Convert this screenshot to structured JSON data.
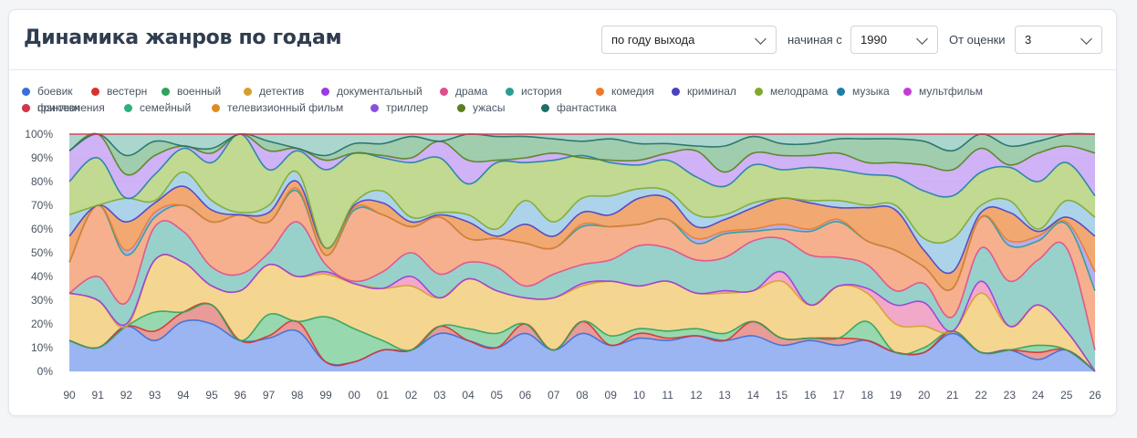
{
  "title": "Динамика жанров по годам",
  "controls": {
    "mode": "по году выхода",
    "from_label": "начиная с",
    "from_value": "1990",
    "rating_label": "От оценки",
    "rating_value": "3"
  },
  "chart_data": {
    "type": "area",
    "stacked": "percent",
    "categories": [
      "90",
      "91",
      "92",
      "93",
      "94",
      "95",
      "96",
      "97",
      "98",
      "99",
      "00",
      "01",
      "02",
      "03",
      "04",
      "05",
      "06",
      "07",
      "08",
      "09",
      "10",
      "11",
      "12",
      "13",
      "14",
      "15",
      "16",
      "17",
      "18",
      "19",
      "20",
      "21",
      "22",
      "23",
      "24",
      "25",
      "26"
    ],
    "yticks": [
      "0%",
      "10%",
      "20%",
      "30%",
      "40%",
      "50%",
      "60%",
      "70%",
      "80%",
      "90%",
      "100%"
    ],
    "ylim": [
      0,
      100
    ],
    "legend_position": "top",
    "series": [
      {
        "name": "боевик",
        "color": "#3a6fd8",
        "values": [
          13,
          10,
          19,
          13,
          21,
          20,
          13,
          14,
          17,
          4,
          4,
          8,
          9,
          16,
          13,
          10,
          16,
          9,
          16,
          11,
          14,
          12,
          15,
          13,
          15,
          11,
          13,
          11,
          13,
          8,
          8,
          16,
          8,
          8,
          5,
          9,
          0
        ]
      },
      {
        "name": "вестерн",
        "color": "#d6332f",
        "values": [
          0,
          0,
          0,
          0,
          0,
          0,
          0,
          0,
          0,
          0,
          0,
          1,
          0,
          0,
          0,
          0,
          0,
          0,
          0,
          0,
          0,
          0,
          0,
          0,
          0,
          0,
          0,
          0,
          0,
          0,
          0,
          0,
          0,
          1,
          0,
          0,
          0
        ]
      },
      {
        "name": "военный",
        "color": "#2ea35a",
        "values": [
          0,
          0,
          0,
          4,
          4,
          8,
          0,
          1,
          4,
          0,
          0,
          0,
          0,
          3,
          0,
          0,
          4,
          0,
          5,
          0,
          2,
          1,
          0,
          0,
          6,
          3,
          1,
          3,
          0,
          0,
          0,
          1,
          0,
          0,
          3,
          0,
          0
        ]
      },
      {
        "name": "детектив",
        "color": "#d69e2e",
        "values": [
          0,
          0,
          0,
          8,
          0,
          0,
          0,
          9,
          0,
          19,
          14,
          4,
          0,
          0,
          5,
          6,
          0,
          0,
          0,
          4,
          2,
          3,
          3,
          3,
          0,
          0,
          0,
          0,
          8,
          0,
          2,
          0,
          0,
          0,
          3,
          0,
          0
        ]
      },
      {
        "name": "документальный",
        "color": "#9b3ae0",
        "values": [
          0,
          0,
          0,
          0,
          0,
          0,
          0,
          0,
          0,
          0,
          0,
          0,
          0,
          0,
          0,
          0,
          0,
          0,
          0,
          0,
          0,
          0,
          0,
          0,
          0,
          0,
          0,
          0,
          0,
          0,
          0,
          0,
          0,
          0,
          0,
          0,
          0
        ]
      },
      {
        "name": "драма",
        "color": "#e04f8b",
        "values": [
          20,
          20,
          0,
          22,
          21,
          8,
          21,
          21,
          19,
          18,
          19,
          22,
          27,
          12,
          21,
          18,
          11,
          22,
          15,
          23,
          18,
          21,
          15,
          17,
          13,
          24,
          14,
          22,
          12,
          12,
          9,
          0,
          25,
          10,
          17,
          8,
          0
        ]
      },
      {
        "name": "история",
        "color": "#2a9d8f",
        "values": [
          0,
          0,
          1,
          0,
          0,
          0,
          0,
          0,
          0,
          0,
          0,
          0,
          4,
          0,
          0,
          0,
          0,
          0,
          1,
          0,
          0,
          0,
          0,
          1,
          0,
          4,
          0,
          0,
          2,
          8,
          10,
          0,
          5,
          0,
          0,
          0,
          0
        ]
      },
      {
        "name": "комедия",
        "color": "#ec7a2a",
        "values": [
          0,
          10,
          9,
          14,
          13,
          8,
          7,
          5,
          23,
          3,
          1,
          7,
          10,
          10,
          7,
          10,
          5,
          10,
          8,
          9,
          17,
          14,
          14,
          14,
          21,
          14,
          21,
          12,
          10,
          6,
          8,
          6,
          14,
          19,
          19,
          35,
          9
        ]
      },
      {
        "name": "криминал",
        "color": "#4b3fc4",
        "values": [
          0,
          0,
          0,
          0,
          0,
          0,
          0,
          0,
          0,
          0,
          0,
          0,
          0,
          0,
          0,
          0,
          0,
          0,
          0,
          0,
          0,
          0,
          0,
          0,
          0,
          0,
          0,
          0,
          0,
          0,
          0,
          0,
          0,
          0,
          0,
          0,
          0
        ]
      },
      {
        "name": "мелодрама",
        "color": "#7fa82e",
        "values": [
          0,
          0,
          0,
          0,
          0,
          0,
          0,
          0,
          0,
          0,
          0,
          0,
          0,
          0,
          0,
          0,
          0,
          0,
          0,
          0,
          0,
          0,
          0,
          0,
          0,
          0,
          0,
          0,
          0,
          0,
          0,
          0,
          0,
          0,
          0,
          0,
          0
        ]
      },
      {
        "name": "музыка",
        "color": "#1f7fa8",
        "values": [
          0,
          0,
          0,
          0,
          0,
          0,
          0,
          0,
          0,
          0,
          0,
          0,
          0,
          0,
          0,
          0,
          0,
          0,
          0,
          0,
          0,
          0,
          0,
          0,
          0,
          0,
          0,
          0,
          0,
          0,
          0,
          0,
          0,
          0,
          0,
          0,
          0
        ]
      },
      {
        "name": "мультфильм",
        "color": "#c63ad6",
        "values": [
          0,
          0,
          0,
          0,
          0,
          0,
          0,
          0,
          0,
          0,
          0,
          0,
          0,
          0,
          0,
          0,
          0,
          0,
          0,
          0,
          0,
          0,
          0,
          0,
          0,
          0,
          0,
          0,
          0,
          0,
          0,
          0,
          0,
          0,
          0,
          0,
          0
        ]
      },
      {
        "name": "приключения",
        "color": "#2b8fd6",
        "values": [
          0,
          0,
          0,
          0,
          0,
          0,
          0,
          0,
          0,
          0,
          0,
          0,
          0,
          0,
          0,
          0,
          0,
          0,
          0,
          0,
          0,
          0,
          0,
          0,
          0,
          0,
          0,
          0,
          0,
          0,
          0,
          0,
          0,
          0,
          0,
          0,
          0
        ]
      },
      {
        "name": "семейный",
        "color": "#2fae7e",
        "values": [
          0,
          0,
          0,
          0,
          0,
          0,
          0,
          0,
          0,
          0,
          0,
          0,
          0,
          0,
          0,
          0,
          0,
          0,
          0,
          0,
          0,
          0,
          0,
          0,
          0,
          0,
          0,
          0,
          0,
          0,
          0,
          0,
          0,
          0,
          0,
          0,
          0
        ]
      },
      {
        "name": "телевизионный фильм",
        "color": "#e2891f",
        "values": [
          0,
          0,
          0,
          0,
          0,
          0,
          0,
          0,
          0,
          0,
          0,
          0,
          0,
          0,
          0,
          0,
          0,
          0,
          0,
          0,
          0,
          0,
          0,
          0,
          0,
          0,
          0,
          0,
          0,
          0,
          0,
          0,
          0,
          0,
          0,
          0,
          0
        ]
      },
      {
        "name": "триллер",
        "color": "#8a4fe0",
        "values": [
          0,
          0,
          0,
          0,
          0,
          0,
          0,
          0,
          0,
          0,
          0,
          0,
          0,
          0,
          0,
          0,
          0,
          0,
          0,
          0,
          0,
          0,
          0,
          0,
          0,
          0,
          0,
          0,
          0,
          0,
          0,
          0,
          0,
          0,
          0,
          0,
          0
        ]
      },
      {
        "name": "ужасы",
        "color": "#5a7f1f",
        "values": [
          0,
          0,
          0,
          0,
          0,
          0,
          0,
          0,
          0,
          0,
          0,
          0,
          0,
          0,
          0,
          0,
          0,
          0,
          0,
          0,
          0,
          0,
          0,
          0,
          0,
          0,
          0,
          0,
          0,
          0,
          0,
          0,
          0,
          0,
          0,
          0,
          0
        ]
      },
      {
        "name": "фантастика",
        "color": "#1f6f66",
        "values": [
          0,
          0,
          0,
          0,
          0,
          0,
          0,
          0,
          0,
          0,
          0,
          0,
          0,
          0,
          0,
          0,
          0,
          0,
          0,
          0,
          0,
          0,
          0,
          0,
          0,
          0,
          0,
          0,
          0,
          0,
          0,
          0,
          0,
          0,
          0,
          0,
          0
        ]
      },
      {
        "name": "фэнтези",
        "color": "#d8334a",
        "values": [
          0,
          0,
          0,
          0,
          0,
          0,
          0,
          0,
          0,
          0,
          0,
          0,
          0,
          0,
          0,
          0,
          0,
          0,
          0,
          0,
          0,
          0,
          0,
          0,
          0,
          0,
          0,
          0,
          0,
          0,
          0,
          0,
          0,
          0,
          0,
          0,
          0
        ]
      }
    ],
    "cumulative_boundaries": [
      [
        13,
        10,
        19,
        13,
        21,
        20,
        13,
        14,
        17,
        4,
        4,
        9,
        9,
        16,
        13,
        10,
        16,
        9,
        16,
        11,
        14,
        13,
        15,
        13,
        15,
        11,
        13,
        11,
        13,
        8,
        8,
        16,
        8,
        9,
        5,
        9,
        0
      ],
      [
        13,
        10,
        19,
        17,
        25,
        28,
        13,
        15,
        21,
        4,
        4,
        9,
        9,
        19,
        13,
        10,
        20,
        9,
        21,
        11,
        16,
        14,
        15,
        13,
        21,
        14,
        14,
        14,
        13,
        8,
        8,
        17,
        8,
        9,
        8,
        9,
        0
      ],
      [
        13,
        10,
        19,
        25,
        25,
        28,
        13,
        24,
        21,
        23,
        18,
        13,
        9,
        19,
        18,
        16,
        20,
        9,
        21,
        15,
        18,
        17,
        18,
        16,
        21,
        14,
        14,
        14,
        21,
        8,
        10,
        17,
        8,
        9,
        11,
        9,
        0
      ],
      [
        33,
        30,
        19,
        47,
        46,
        36,
        34,
        45,
        40,
        41,
        37,
        35,
        36,
        31,
        39,
        34,
        31,
        31,
        36,
        38,
        36,
        38,
        33,
        33,
        34,
        38,
        28,
        36,
        33,
        20,
        19,
        17,
        33,
        19,
        28,
        17,
        0
      ],
      [
        33,
        30,
        20,
        47,
        46,
        36,
        34,
        45,
        40,
        42,
        37,
        35,
        40,
        31,
        39,
        34,
        31,
        31,
        37,
        38,
        36,
        38,
        33,
        34,
        34,
        42,
        28,
        36,
        35,
        28,
        29,
        17,
        38,
        19,
        28,
        17,
        0
      ],
      [
        33,
        40,
        29,
        61,
        59,
        44,
        41,
        50,
        63,
        45,
        38,
        42,
        50,
        41,
        46,
        44,
        36,
        41,
        45,
        47,
        53,
        52,
        47,
        48,
        55,
        56,
        49,
        48,
        45,
        34,
        37,
        23,
        52,
        38,
        47,
        52,
        9
      ],
      [
        46,
        70,
        49,
        65,
        70,
        63,
        66,
        63,
        76,
        49,
        68,
        66,
        61,
        65,
        56,
        56,
        54,
        52,
        61,
        61,
        62,
        64,
        54,
        58,
        59,
        60,
        59,
        63,
        55,
        51,
        44,
        35,
        65,
        53,
        55,
        62,
        34
      ],
      [
        46,
        70,
        51,
        67,
        70,
        63,
        66,
        63,
        77,
        49,
        69,
        66,
        61,
        65,
        56,
        56,
        54,
        52,
        62,
        61,
        62,
        64,
        56,
        59,
        60,
        62,
        60,
        64,
        55,
        51,
        44,
        35,
        65,
        55,
        57,
        63,
        42
      ],
      [
        57,
        70,
        63,
        71,
        78,
        68,
        66,
        67,
        80,
        52,
        70,
        71,
        63,
        66,
        63,
        57,
        62,
        57,
        67,
        66,
        73,
        73,
        61,
        64,
        69,
        73,
        71,
        69,
        69,
        68,
        51,
        42,
        67,
        67,
        59,
        65,
        57
      ],
      [
        66,
        70,
        73,
        72,
        84,
        72,
        67,
        70,
        84,
        52,
        71,
        76,
        65,
        67,
        66,
        60,
        72,
        63,
        73,
        74,
        77,
        76,
        66,
        66,
        71,
        73,
        72,
        72,
        70,
        70,
        56,
        56,
        70,
        72,
        60,
        72,
        65
      ],
      [
        80,
        90,
        73,
        83,
        94,
        88,
        100,
        85,
        93,
        85,
        92,
        90,
        88,
        90,
        79,
        88,
        88,
        89,
        91,
        88,
        87,
        89,
        82,
        78,
        87,
        85,
        86,
        85,
        83,
        82,
        76,
        74,
        84,
        86,
        80,
        88,
        74
      ],
      [
        93,
        100,
        83,
        91,
        95,
        92,
        100,
        93,
        94,
        89,
        92,
        91,
        90,
        97,
        89,
        89,
        90,
        92,
        90,
        89,
        89,
        92,
        93,
        84,
        92,
        91,
        91,
        92,
        88,
        88,
        87,
        85,
        94,
        87,
        92,
        95,
        92
      ],
      [
        93,
        100,
        91,
        97,
        95,
        94,
        100,
        97,
        94,
        91,
        96,
        96,
        99,
        97,
        100,
        99,
        99,
        98,
        97,
        98,
        96,
        96,
        95,
        95,
        99,
        96,
        96,
        98,
        98,
        98,
        97,
        93,
        100,
        95,
        97,
        100,
        100
      ]
    ]
  },
  "legend": [
    {
      "name": "боевик",
      "color": "#3a6fd8"
    },
    {
      "name": "вестерн",
      "color": "#d6332f"
    },
    {
      "name": "военный",
      "color": "#2ea35a"
    },
    {
      "name": "детектив",
      "color": "#d69e2e"
    },
    {
      "name": "документальный",
      "color": "#9b3ae0"
    },
    {
      "name": "драма",
      "color": "#e04f8b"
    },
    {
      "name": "история",
      "color": "#2a9d8f"
    },
    {
      "name": "комедия",
      "color": "#ec7a2a"
    },
    {
      "name": "криминал",
      "color": "#4b3fc4"
    },
    {
      "name": "мелодрама",
      "color": "#7fa82e"
    },
    {
      "name": "музыка",
      "color": "#1f7fa8"
    },
    {
      "name": "мультфильм",
      "color": "#c63ad6"
    },
    {
      "name": "приключения",
      "color": "#2b8fd6"
    },
    {
      "name": "семейный",
      "color": "#2fae7e"
    },
    {
      "name": "телевизионный фильм",
      "color": "#e2891f"
    },
    {
      "name": "триллер",
      "color": "#8a4fe0"
    },
    {
      "name": "ужасы",
      "color": "#5a7f1f"
    },
    {
      "name": "фантастика",
      "color": "#1f6f66"
    },
    {
      "name": "фэнтези",
      "color": "#d8334a"
    }
  ]
}
